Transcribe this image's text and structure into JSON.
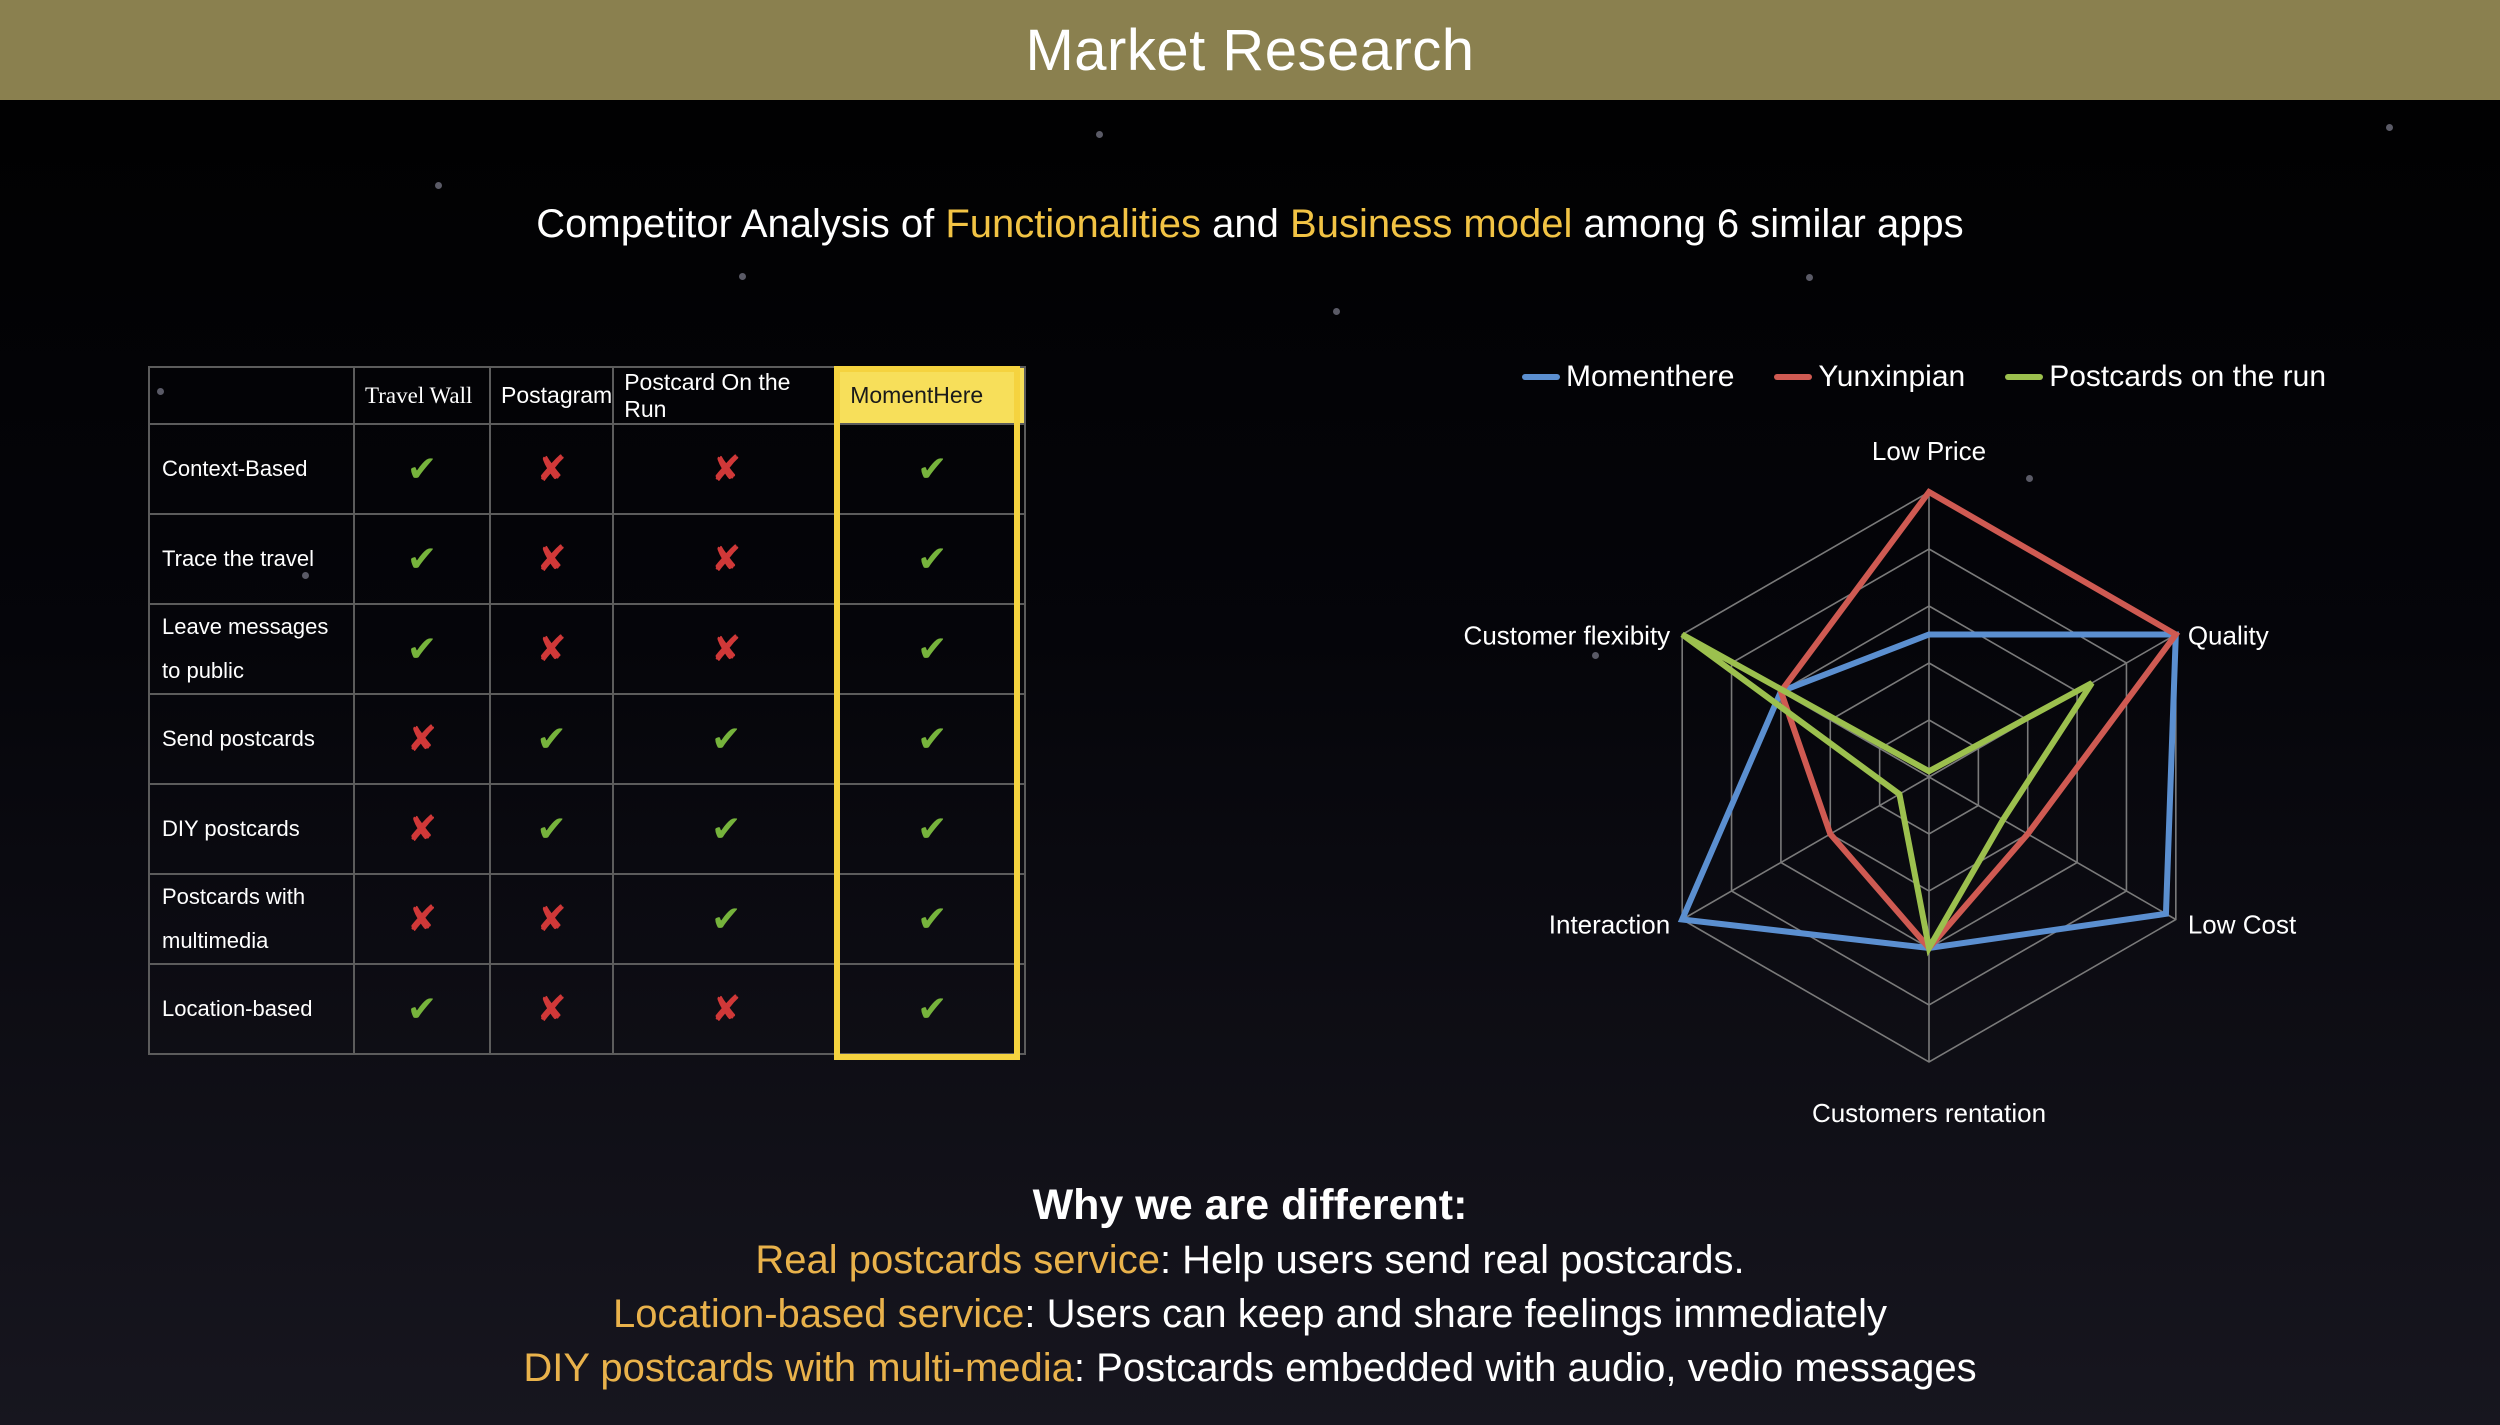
{
  "header": {
    "title": "Market Research"
  },
  "subtitle": {
    "part1": "Competitor Analysis of ",
    "highlight1": "Functionalities",
    "part2": " and ",
    "highlight2": "Business model",
    "part3": " among 6 similar apps"
  },
  "table": {
    "columns": [
      "Travel Wall",
      "Postagram",
      "Postcard On the Run",
      "MomentHere"
    ],
    "rows": [
      {
        "feature": "Context-Based",
        "marks": [
          true,
          false,
          false,
          true
        ]
      },
      {
        "feature": "Trace the travel",
        "marks": [
          true,
          false,
          false,
          true
        ]
      },
      {
        "feature": "Leave messages to public",
        "marks": [
          true,
          false,
          false,
          true
        ]
      },
      {
        "feature": "Send postcards",
        "marks": [
          false,
          true,
          true,
          true
        ]
      },
      {
        "feature": "DIY postcards",
        "marks": [
          false,
          true,
          true,
          true
        ]
      },
      {
        "feature": "Postcards with multimedia",
        "marks": [
          false,
          false,
          true,
          true
        ]
      },
      {
        "feature": "Location-based",
        "marks": [
          true,
          false,
          false,
          true
        ]
      }
    ],
    "check_symbol": "✔",
    "cross_symbol": "✘"
  },
  "chart_data": {
    "type": "radar",
    "axes": [
      "Low Price",
      "Quality",
      "Low Cost",
      "Customers rentation",
      "Interaction",
      "Customer flexibity"
    ],
    "max": 5,
    "rings": 5,
    "series": [
      {
        "name": "Momenthere",
        "color": "#5b8fd0",
        "values": [
          2.5,
          5,
          4.8,
          3,
          5,
          3
        ]
      },
      {
        "name": "Yunxinpian",
        "color": "#cf5a52",
        "values": [
          5,
          5,
          2,
          3,
          2,
          3
        ]
      },
      {
        "name": "Postcards on the run",
        "color": "#9cc04e",
        "values": [
          0.1,
          3.3,
          1.5,
          3,
          0.6,
          5
        ]
      }
    ]
  },
  "differences": {
    "heading": "Why we are different:",
    "items": [
      {
        "key": "Real postcards service",
        "text": ": Help users send real postcards."
      },
      {
        "key": "Location-based service",
        "text": ":  Users can keep and share feelings immediately"
      },
      {
        "key": "DIY postcards with multi-media",
        "text": ": Postcards embedded with audio, vedio messages"
      }
    ]
  }
}
